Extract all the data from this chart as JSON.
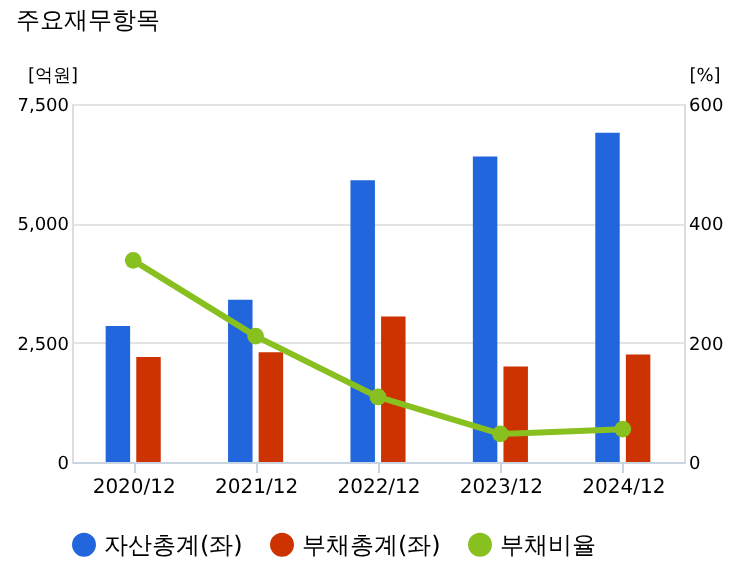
{
  "chart_data": {
    "type": "bar",
    "title": "주요재무항목",
    "ylabel": "[억원]",
    "y2label": "[%]",
    "categories": [
      "2020/12",
      "2021/12",
      "2022/12",
      "2023/12",
      "2024/12"
    ],
    "series": [
      {
        "name": "자산총계(좌)",
        "color": "#2266dd",
        "values": [
          2850,
          3400,
          5900,
          6400,
          6900
        ]
      },
      {
        "name": "부채총계(좌)",
        "color": "#cc3300",
        "values": [
          2200,
          2300,
          3050,
          2000,
          2250
        ]
      },
      {
        "name": "부채비율",
        "type": "line",
        "axis": "y2",
        "color": "#88c020",
        "marker": "circle",
        "values": [
          338,
          211,
          109,
          47,
          55
        ]
      }
    ],
    "ylim": [
      0,
      7500
    ],
    "yticks": [
      0,
      {
        "value": 2500,
        "label": "2,500"
      },
      {
        "value": 5000,
        "label": "5,000"
      },
      {
        "value": 7500,
        "label": "7,500"
      }
    ],
    "y2lim": [
      0,
      600
    ],
    "y2ticks": [
      0,
      200,
      400,
      600
    ],
    "grid": "y",
    "legend": "bottom"
  }
}
